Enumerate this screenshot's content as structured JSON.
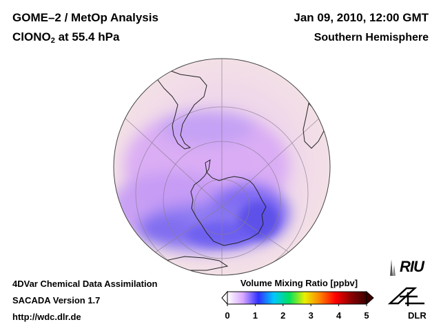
{
  "header": {
    "title_line1": "GOME–2 / MetOp Analysis",
    "species_prefix": "ClONO",
    "species_subscript": "2",
    "species_suffix": " at 55.4 hPa",
    "date": "Jan 09, 2010, 12:00 GMT",
    "region": "Southern Hemisphere"
  },
  "footer": {
    "method": "4DVar Chemical Data Assimilation",
    "version": "SACADA Version 1.7",
    "url": "http://wdc.dlr.de"
  },
  "colorbar": {
    "title": "Volume Mixing Ratio [ppbv]",
    "min": 0,
    "max": 5,
    "ticks": [
      "0",
      "1",
      "2",
      "3",
      "4",
      "5"
    ],
    "stops": [
      "#ffffff",
      "#d9a8ff",
      "#3030ff",
      "#00c8ff",
      "#00e060",
      "#e8f000",
      "#ff8000",
      "#ff0000",
      "#8b0000",
      "#3a0000"
    ]
  },
  "logos": {
    "riu": "RIU",
    "dlr": "DLR"
  },
  "map": {
    "projection": "orthographic",
    "background_color": "#f2dde8",
    "ozone_hole_color": "#6a5cf0"
  }
}
